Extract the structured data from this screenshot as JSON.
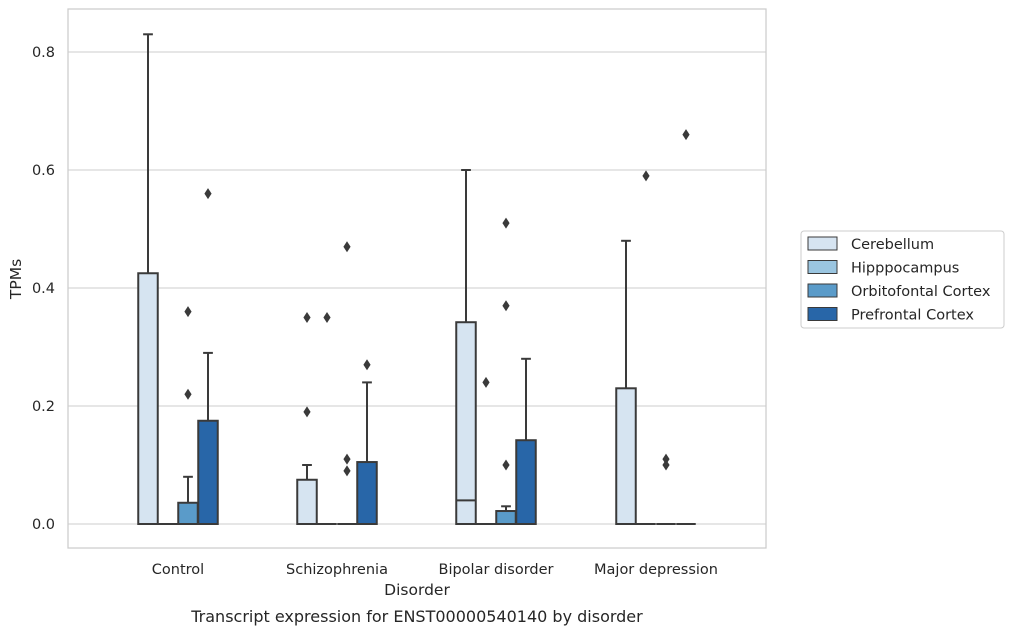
{
  "chart_data": {
    "type": "box",
    "title": "",
    "caption": "Transcript expression for ENST00000540140 by disorder",
    "xlabel": "Disorder",
    "ylabel": "TPMs",
    "ylim": [
      -0.04,
      0.875
    ],
    "yticks": [
      "0.0",
      "0.2",
      "0.4",
      "0.6",
      "0.8"
    ],
    "ytick_values": [
      0.0,
      0.2,
      0.4,
      0.6,
      0.8
    ],
    "grid": true,
    "legend_placement": "right, outside plot",
    "categories": [
      "Control",
      "Schizophrenia",
      "Bipolar disorder",
      "Major depression"
    ],
    "series": [
      {
        "name": "Cerebellum",
        "color": "#d6e4f1",
        "boxes": [
          {
            "q1": 0.0,
            "median": 0.0,
            "q3": 0.425,
            "whisker_low": 0.0,
            "whisker_high": 0.83,
            "outliers": []
          },
          {
            "q1": 0.0,
            "median": 0.0,
            "q3": 0.075,
            "whisker_low": 0.0,
            "whisker_high": 0.1,
            "outliers": [
              0.35,
              0.19
            ]
          },
          {
            "q1": 0.0,
            "median": 0.04,
            "q3": 0.342,
            "whisker_low": 0.0,
            "whisker_high": 0.6,
            "outliers": []
          },
          {
            "q1": 0.0,
            "median": 0.0,
            "q3": 0.23,
            "whisker_low": 0.0,
            "whisker_high": 0.48,
            "outliers": []
          }
        ]
      },
      {
        "name": "Hipppocampus",
        "color": "#9ac5e0",
        "boxes": [
          {
            "q1": 0.0,
            "median": 0.0,
            "q3": 0.0,
            "whisker_low": 0.0,
            "whisker_high": 0.0,
            "outliers": []
          },
          {
            "q1": 0.0,
            "median": 0.0,
            "q3": 0.0,
            "whisker_low": 0.0,
            "whisker_high": 0.0,
            "outliers": [
              0.35
            ]
          },
          {
            "q1": 0.0,
            "median": 0.0,
            "q3": 0.0,
            "whisker_low": 0.0,
            "whisker_high": 0.0,
            "outliers": [
              0.24
            ]
          },
          {
            "q1": 0.0,
            "median": 0.0,
            "q3": 0.0,
            "whisker_low": 0.0,
            "whisker_high": 0.0,
            "outliers": [
              0.59
            ]
          }
        ]
      },
      {
        "name": "Orbitofontal Cortex",
        "color": "#5a9bc9",
        "boxes": [
          {
            "q1": 0.0,
            "median": 0.0,
            "q3": 0.036,
            "whisker_low": 0.0,
            "whisker_high": 0.08,
            "outliers": [
              0.36,
              0.22
            ]
          },
          {
            "q1": 0.0,
            "median": 0.0,
            "q3": 0.0,
            "whisker_low": 0.0,
            "whisker_high": 0.0,
            "outliers": [
              0.47,
              0.11,
              0.09
            ]
          },
          {
            "q1": 0.0,
            "median": 0.0,
            "q3": 0.022,
            "whisker_low": 0.0,
            "whisker_high": 0.03,
            "outliers": [
              0.51,
              0.37,
              0.1
            ]
          },
          {
            "q1": 0.0,
            "median": 0.0,
            "q3": 0.0,
            "whisker_low": 0.0,
            "whisker_high": 0.0,
            "outliers": [
              0.11,
              0.1
            ]
          }
        ]
      },
      {
        "name": "Prefrontal Cortex",
        "color": "#2866a8",
        "boxes": [
          {
            "q1": 0.0,
            "median": 0.0,
            "q3": 0.175,
            "whisker_low": 0.0,
            "whisker_high": 0.29,
            "outliers": [
              0.56
            ]
          },
          {
            "q1": 0.0,
            "median": 0.0,
            "q3": 0.105,
            "whisker_low": 0.0,
            "whisker_high": 0.24,
            "outliers": [
              0.27
            ]
          },
          {
            "q1": 0.0,
            "median": 0.0,
            "q3": 0.142,
            "whisker_low": 0.0,
            "whisker_high": 0.28,
            "outliers": []
          },
          {
            "q1": 0.0,
            "median": 0.0,
            "q3": 0.0,
            "whisker_low": 0.0,
            "whisker_high": 0.0,
            "outliers": [
              0.66
            ]
          }
        ]
      }
    ]
  }
}
